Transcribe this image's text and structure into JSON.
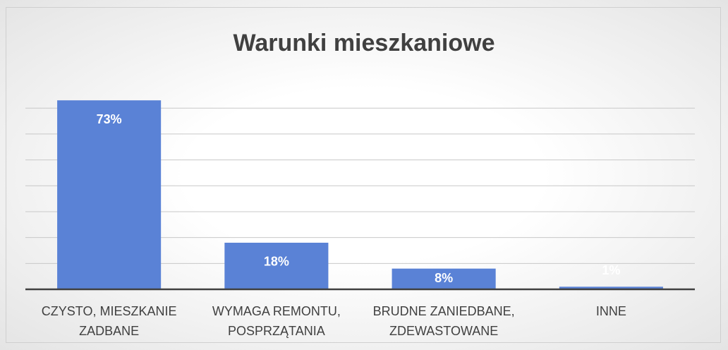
{
  "chart_data": {
    "type": "bar",
    "title": "Warunki mieszkaniowe",
    "categories": [
      "CZYSTO, MIESZKANIE ZADBANE",
      "WYMAGA REMONTU, POSPRZĄTANIA",
      "BRUDNE ZANIEDBANE, ZDEWASTOWANE",
      "INNE"
    ],
    "values": [
      73,
      18,
      8,
      1
    ],
    "value_labels": [
      "73%",
      "18%",
      "8%",
      "1%"
    ],
    "color": "#5a82d6",
    "ylim": [
      0,
      80
    ],
    "yticks": [
      10,
      20,
      30,
      40,
      50,
      60,
      70
    ],
    "grid": true
  }
}
